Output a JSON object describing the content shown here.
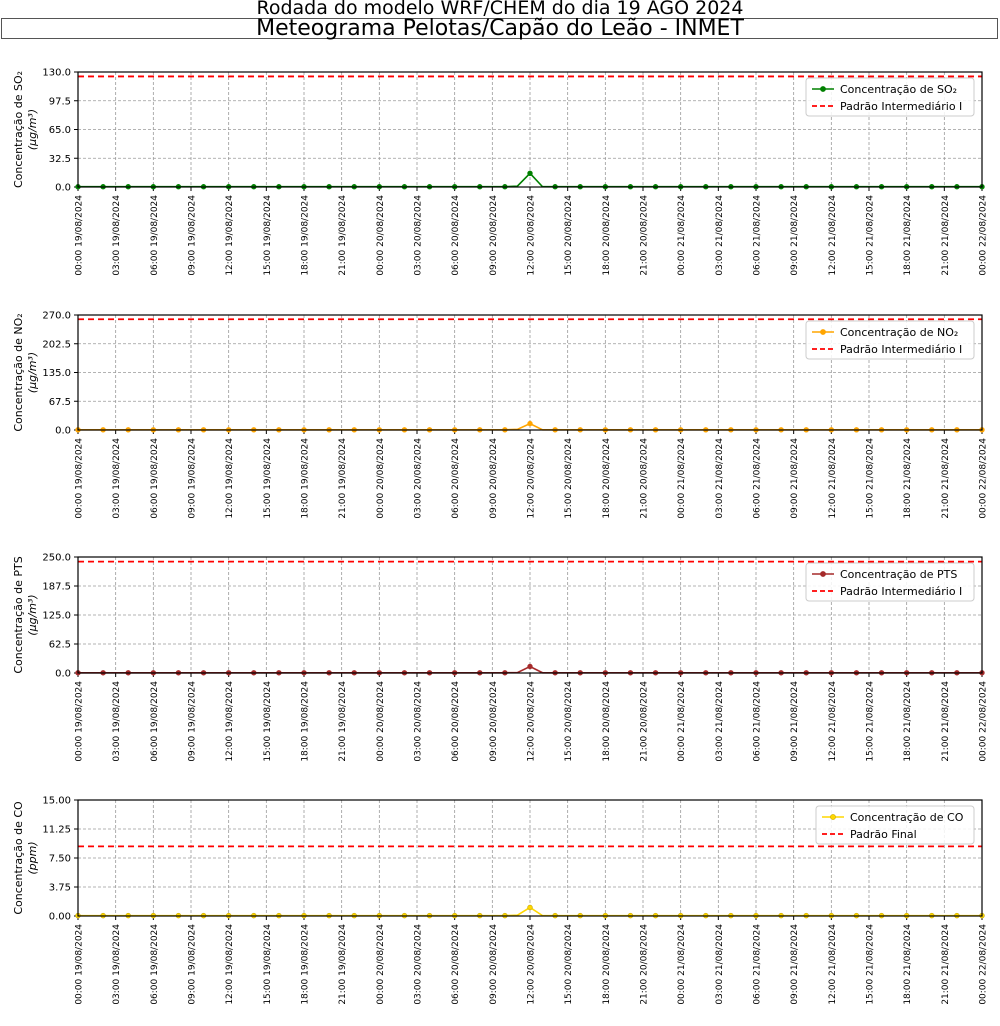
{
  "header": {
    "suptitle": "Rodada do modelo WRF/CHEM do dia 19 AGO 2024",
    "title": "Meteograma Pelotas/Capão do Leão - INMET"
  },
  "x_tick_labels": [
    "00:00 19/08/2024",
    "03:00 19/08/2024",
    "06:00 19/08/2024",
    "09:00 19/08/2024",
    "12:00 19/08/2024",
    "15:00 19/08/2024",
    "18:00 19/08/2024",
    "21:00 19/08/2024",
    "00:00 20/08/2024",
    "03:00 20/08/2024",
    "06:00 20/08/2024",
    "09:00 20/08/2024",
    "12:00 20/08/2024",
    "15:00 20/08/2024",
    "18:00 20/08/2024",
    "21:00 20/08/2024",
    "00:00 21/08/2024",
    "03:00 21/08/2024",
    "06:00 21/08/2024",
    "09:00 21/08/2024",
    "12:00 21/08/2024",
    "15:00 21/08/2024",
    "18:00 21/08/2024",
    "21:00 21/08/2024",
    "00:00 22/08/2024"
  ],
  "chart_data": [
    {
      "type": "line",
      "ylabel": "Concentração de SO₂",
      "ylabel_unit": "(μg/m³)",
      "ylim": [
        0,
        130
      ],
      "yticks": [
        "0.0",
        "32.5",
        "65.0",
        "97.5",
        "130.0"
      ],
      "grid": true,
      "legend_placement": "top-right",
      "series": [
        {
          "name": "Concentração de SO₂",
          "color": "#008000",
          "style": "solid-marker",
          "peak_hour": 36,
          "peak_value": 15.5,
          "near_peak": {
            "35": 1.0
          },
          "baseline": 0.3
        },
        {
          "name": "Padrão Intermediário I",
          "color": "#ff0000",
          "style": "dashed",
          "value": 125
        }
      ]
    },
    {
      "type": "line",
      "ylabel": "Concentração de NO₂",
      "ylabel_unit": "(μg/m³)",
      "ylim": [
        0,
        270
      ],
      "yticks": [
        "0.0",
        "67.5",
        "135.0",
        "202.5",
        "270.0"
      ],
      "grid": true,
      "legend_placement": "top-right",
      "series": [
        {
          "name": "Concentração de NO₂",
          "color": "#ffa500",
          "style": "solid-marker",
          "peak_hour": 36,
          "peak_value": 15.0,
          "near_peak": {
            "35": 1.5
          },
          "baseline": 0.5
        },
        {
          "name": "Padrão Intermediário I",
          "color": "#ff0000",
          "style": "dashed",
          "value": 260
        }
      ]
    },
    {
      "type": "line",
      "ylabel": "Concentração de PTS",
      "ylabel_unit": "(μg/m³)",
      "ylim": [
        0,
        250
      ],
      "yticks": [
        "0.0",
        "62.5",
        "125.0",
        "187.5",
        "250.0"
      ],
      "grid": true,
      "legend_placement": "top-right",
      "series": [
        {
          "name": "Concentração de PTS",
          "color": "#a52a2a",
          "style": "solid-marker",
          "peak_hour": 36,
          "peak_value": 14.0,
          "near_peak": {
            "35": 1.0
          },
          "baseline": 0.5
        },
        {
          "name": "Padrão Intermediário I",
          "color": "#ff0000",
          "style": "dashed",
          "value": 240
        }
      ]
    },
    {
      "type": "line",
      "ylabel": "Concentração de CO",
      "ylabel_unit": "(ppm)",
      "ylim": [
        0,
        15
      ],
      "yticks": [
        "0.00",
        "3.75",
        "7.50",
        "11.25",
        "15.00"
      ],
      "grid": true,
      "legend_placement": "top-right",
      "series": [
        {
          "name": "Concentração de CO",
          "color": "#ffd700",
          "marker_edge": "#c9a800",
          "style": "solid-marker",
          "peak_hour": 36,
          "peak_value": 1.1,
          "near_peak": {
            "35": 0.1
          },
          "baseline": 0.05
        },
        {
          "name": "Padrão Final",
          "color": "#ff0000",
          "style": "dashed",
          "value": 9
        }
      ]
    }
  ]
}
